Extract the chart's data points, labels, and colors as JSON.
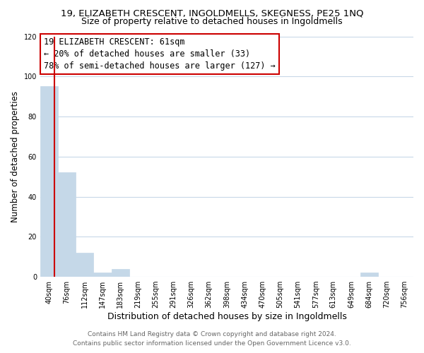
{
  "title": "19, ELIZABETH CRESCENT, INGOLDMELLS, SKEGNESS, PE25 1NQ",
  "subtitle": "Size of property relative to detached houses in Ingoldmells",
  "xlabel": "Distribution of detached houses by size in Ingoldmells",
  "ylabel": "Number of detached properties",
  "bin_labels": [
    "40sqm",
    "76sqm",
    "112sqm",
    "147sqm",
    "183sqm",
    "219sqm",
    "255sqm",
    "291sqm",
    "326sqm",
    "362sqm",
    "398sqm",
    "434sqm",
    "470sqm",
    "505sqm",
    "541sqm",
    "577sqm",
    "613sqm",
    "649sqm",
    "684sqm",
    "720sqm",
    "756sqm"
  ],
  "bar_heights": [
    95,
    52,
    12,
    2,
    4,
    0,
    0,
    0,
    0,
    0,
    0,
    0,
    0,
    0,
    0,
    0,
    0,
    0,
    2,
    0,
    0
  ],
  "bar_color": "#c5d8e8",
  "bar_edge_color": "#c5d8e8",
  "vline_color": "#cc0000",
  "ylim": [
    0,
    120
  ],
  "yticks": [
    0,
    20,
    40,
    60,
    80,
    100,
    120
  ],
  "annotation_title": "19 ELIZABETH CRESCENT: 61sqm",
  "annotation_line1": "← 20% of detached houses are smaller (33)",
  "annotation_line2": "78% of semi-detached houses are larger (127) →",
  "annotation_box_color": "#ffffff",
  "annotation_box_edge": "#cc0000",
  "footer_line1": "Contains HM Land Registry data © Crown copyright and database right 2024.",
  "footer_line2": "Contains public sector information licensed under the Open Government Licence v3.0.",
  "background_color": "#ffffff",
  "grid_color": "#c8d8e8",
  "title_fontsize": 9.5,
  "subtitle_fontsize": 9,
  "xlabel_fontsize": 9,
  "ylabel_fontsize": 8.5,
  "tick_fontsize": 7,
  "footer_fontsize": 6.5,
  "annotation_fontsize": 8.5
}
